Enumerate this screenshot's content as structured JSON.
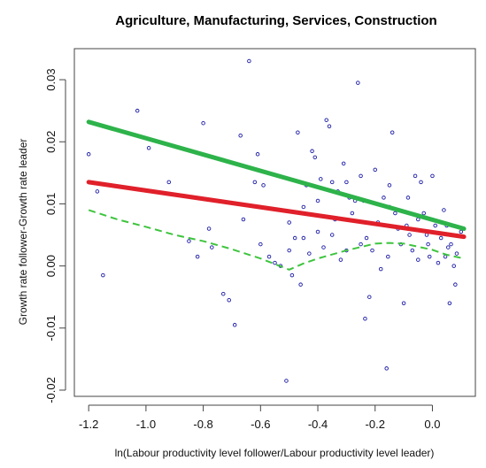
{
  "chart_data": {
    "type": "scatter",
    "title": "Agriculture, Manufacturing, Services, Construction",
    "xlabel": "ln(Labour productivity level follower/Labour productivity level leader)",
    "ylabel": "Growth rate follower-Growth rate leader",
    "xlim": [
      -1.25,
      0.15
    ],
    "ylim": [
      -0.021,
      0.035
    ],
    "x_ticks": [
      -1.2,
      -1.0,
      -0.8,
      -0.6,
      -0.4,
      -0.2,
      0.0
    ],
    "x_tick_labels": [
      "-1.2",
      "-1.0",
      "-0.8",
      "-0.6",
      "-0.4",
      "-0.2",
      "0.0"
    ],
    "y_ticks": [
      -0.02,
      -0.01,
      0.0,
      0.01,
      0.02,
      0.03
    ],
    "y_tick_labels": [
      "-0.02",
      "-0.01",
      "0.00",
      "0.01",
      "0.02",
      "0.03"
    ],
    "grid": false,
    "points": [
      {
        "x": -1.2,
        "y": 0.018
      },
      {
        "x": -1.17,
        "y": 0.012
      },
      {
        "x": -1.15,
        "y": -0.0015
      },
      {
        "x": -1.03,
        "y": 0.025
      },
      {
        "x": -0.99,
        "y": 0.019
      },
      {
        "x": -0.92,
        "y": 0.0135
      },
      {
        "x": -0.85,
        "y": 0.004
      },
      {
        "x": -0.82,
        "y": 0.0015
      },
      {
        "x": -0.8,
        "y": 0.023
      },
      {
        "x": -0.78,
        "y": 0.006
      },
      {
        "x": -0.77,
        "y": 0.003
      },
      {
        "x": -0.73,
        "y": -0.0045
      },
      {
        "x": -0.71,
        "y": -0.0055
      },
      {
        "x": -0.69,
        "y": -0.0095
      },
      {
        "x": -0.67,
        "y": 0.021
      },
      {
        "x": -0.66,
        "y": 0.0075
      },
      {
        "x": -0.64,
        "y": 0.033
      },
      {
        "x": -0.62,
        "y": 0.0135
      },
      {
        "x": -0.61,
        "y": 0.018
      },
      {
        "x": -0.59,
        "y": 0.013
      },
      {
        "x": -0.57,
        "y": 0.0015
      },
      {
        "x": -0.55,
        "y": 0.0005
      },
      {
        "x": -0.53,
        "y": 0.0
      },
      {
        "x": -0.51,
        "y": -0.0185
      },
      {
        "x": -0.5,
        "y": 0.0025
      },
      {
        "x": -0.49,
        "y": -0.0015
      },
      {
        "x": -0.48,
        "y": 0.0045
      },
      {
        "x": -0.47,
        "y": 0.0215
      },
      {
        "x": -0.46,
        "y": -0.003
      },
      {
        "x": -0.45,
        "y": 0.0045
      },
      {
        "x": -0.44,
        "y": 0.013
      },
      {
        "x": -0.43,
        "y": 0.002
      },
      {
        "x": -0.42,
        "y": 0.0185
      },
      {
        "x": -0.41,
        "y": 0.0175
      },
      {
        "x": -0.4,
        "y": 0.0105
      },
      {
        "x": -0.39,
        "y": 0.014
      },
      {
        "x": -0.38,
        "y": 0.003
      },
      {
        "x": -0.37,
        "y": 0.0235
      },
      {
        "x": -0.36,
        "y": 0.0225
      },
      {
        "x": -0.35,
        "y": 0.0135
      },
      {
        "x": -0.34,
        "y": 0.0075
      },
      {
        "x": -0.33,
        "y": 0.012
      },
      {
        "x": -0.32,
        "y": 0.001
      },
      {
        "x": -0.31,
        "y": 0.0165
      },
      {
        "x": -0.3,
        "y": 0.0025
      },
      {
        "x": -0.29,
        "y": 0.011
      },
      {
        "x": -0.28,
        "y": 0.0085
      },
      {
        "x": -0.27,
        "y": 0.0105
      },
      {
        "x": -0.26,
        "y": 0.0295
      },
      {
        "x": -0.25,
        "y": 0.0145
      },
      {
        "x": -0.24,
        "y": 0.0105
      },
      {
        "x": -0.235,
        "y": -0.0085
      },
      {
        "x": -0.23,
        "y": 0.0045
      },
      {
        "x": -0.22,
        "y": -0.005
      },
      {
        "x": -0.21,
        "y": 0.0025
      },
      {
        "x": -0.2,
        "y": 0.0155
      },
      {
        "x": -0.19,
        "y": 0.007
      },
      {
        "x": -0.18,
        "y": -0.0005
      },
      {
        "x": -0.17,
        "y": 0.011
      },
      {
        "x": -0.16,
        "y": -0.0165
      },
      {
        "x": -0.155,
        "y": 0.0015
      },
      {
        "x": -0.15,
        "y": 0.013
      },
      {
        "x": -0.14,
        "y": 0.0215
      },
      {
        "x": -0.13,
        "y": 0.0085
      },
      {
        "x": -0.12,
        "y": 0.006
      },
      {
        "x": -0.11,
        "y": 0.0035
      },
      {
        "x": -0.1,
        "y": -0.006
      },
      {
        "x": -0.09,
        "y": 0.0065
      },
      {
        "x": -0.085,
        "y": 0.011
      },
      {
        "x": -0.08,
        "y": 0.005
      },
      {
        "x": -0.07,
        "y": 0.0025
      },
      {
        "x": -0.06,
        "y": 0.0145
      },
      {
        "x": -0.05,
        "y": 0.001
      },
      {
        "x": -0.04,
        "y": 0.0135
      },
      {
        "x": -0.03,
        "y": 0.0085
      },
      {
        "x": -0.02,
        "y": 0.005
      },
      {
        "x": -0.015,
        "y": 0.0035
      },
      {
        "x": -0.01,
        "y": 0.0015
      },
      {
        "x": 0.0,
        "y": 0.0145
      },
      {
        "x": 0.01,
        "y": 0.0065
      },
      {
        "x": 0.02,
        "y": 0.0005
      },
      {
        "x": 0.03,
        "y": 0.0045
      },
      {
        "x": 0.04,
        "y": 0.009
      },
      {
        "x": 0.045,
        "y": 0.0015
      },
      {
        "x": 0.05,
        "y": 0.0065
      },
      {
        "x": 0.055,
        "y": 0.003
      },
      {
        "x": 0.06,
        "y": -0.006
      },
      {
        "x": 0.065,
        "y": 0.0035
      },
      {
        "x": 0.07,
        "y": 0.0065
      },
      {
        "x": 0.075,
        "y": 0.0
      },
      {
        "x": 0.08,
        "y": -0.003
      },
      {
        "x": 0.085,
        "y": 0.002
      },
      {
        "x": 0.1,
        "y": 0.0055
      },
      {
        "x": -0.5,
        "y": 0.007
      },
      {
        "x": -0.6,
        "y": 0.0035
      },
      {
        "x": -0.45,
        "y": 0.0095
      },
      {
        "x": -0.35,
        "y": 0.005
      },
      {
        "x": -0.25,
        "y": 0.0035
      },
      {
        "x": -0.15,
        "y": 0.0095
      },
      {
        "x": -0.05,
        "y": 0.0075
      },
      {
        "x": -0.4,
        "y": 0.0055
      },
      {
        "x": -0.3,
        "y": 0.0135
      }
    ],
    "series": [
      {
        "color": "#2db34a",
        "style": "solid",
        "x": [
          -1.2,
          0.11
        ],
        "y": [
          0.0232,
          0.006
        ]
      },
      {
        "color": "#e0202a",
        "style": "solid",
        "x": [
          -1.2,
          0.11
        ],
        "y": [
          0.0135,
          0.0047
        ]
      },
      {
        "color": "#3ec43e",
        "style": "dashed",
        "x": [
          -1.2,
          -1.1,
          -1.0,
          -0.9,
          -0.8,
          -0.7,
          -0.6,
          -0.55,
          -0.5,
          -0.45,
          -0.4,
          -0.3,
          -0.2,
          -0.15,
          -0.1,
          -0.05,
          0.0,
          0.05,
          0.11
        ],
        "y": [
          0.009,
          0.0075,
          0.0063,
          0.005,
          0.004,
          0.0027,
          0.0012,
          0.0003,
          -0.0006,
          0.0004,
          0.0012,
          0.0025,
          0.0036,
          0.0037,
          0.0036,
          0.0031,
          0.0026,
          0.0018,
          0.0012
        ]
      }
    ],
    "colors": {
      "points": "#1a1aa6",
      "axes": "#444444"
    }
  }
}
